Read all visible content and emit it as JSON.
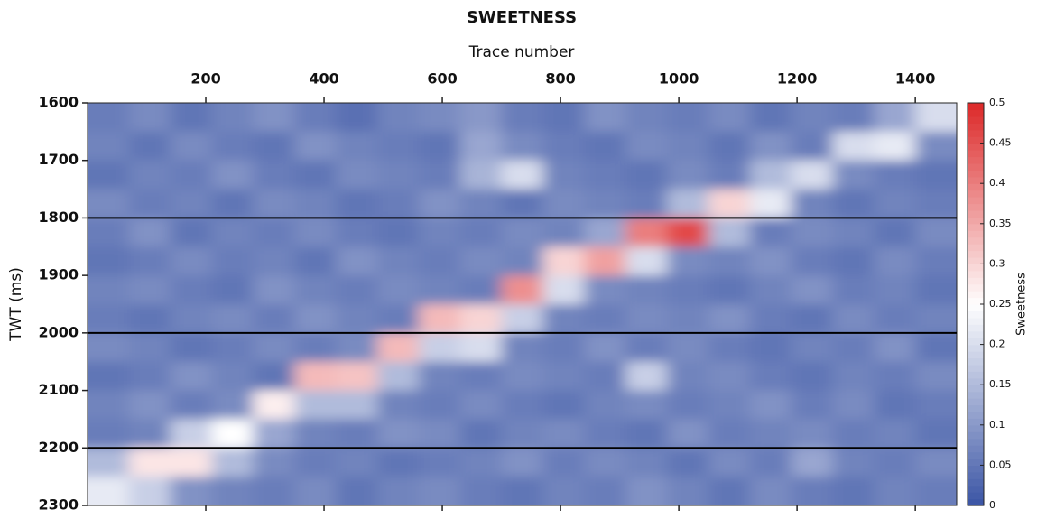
{
  "chart_data": {
    "type": "heatmap",
    "title": "SWEETNESS",
    "xlabel": "Trace number",
    "ylabel": "TWT (ms)",
    "colorbar_label": "Sweetness",
    "xlim": [
      0,
      1470
    ],
    "ylim": [
      1600,
      2300
    ],
    "xticks": [
      200,
      400,
      600,
      800,
      1000,
      1200,
      1400
    ],
    "yticks": [
      1600,
      1700,
      1800,
      1900,
      2000,
      2100,
      2200,
      2300
    ],
    "zlim": [
      0,
      0.5
    ],
    "zticks": [
      0,
      0.05,
      0.1,
      0.15,
      0.2,
      0.25,
      0.3,
      0.35,
      0.4,
      0.45,
      0.5
    ],
    "colormap": [
      "#3a54a4",
      "#ffffff",
      "#dc2828"
    ],
    "hlines": [
      1800,
      2000,
      2200
    ],
    "z": [
      [
        0.06,
        0.08,
        0.05,
        0.07,
        0.09,
        0.06,
        0.04,
        0.07,
        0.08,
        0.1,
        0.06,
        0.05,
        0.09,
        0.07,
        0.06,
        0.08,
        0.05,
        0.07,
        0.06,
        0.12,
        0.2
      ],
      [
        0.07,
        0.05,
        0.08,
        0.06,
        0.05,
        0.09,
        0.07,
        0.06,
        0.05,
        0.12,
        0.08,
        0.06,
        0.05,
        0.08,
        0.07,
        0.05,
        0.09,
        0.06,
        0.2,
        0.22,
        0.08
      ],
      [
        0.05,
        0.07,
        0.06,
        0.09,
        0.06,
        0.05,
        0.08,
        0.07,
        0.06,
        0.14,
        0.2,
        0.07,
        0.06,
        0.05,
        0.08,
        0.06,
        0.15,
        0.2,
        0.08,
        0.06,
        0.05
      ],
      [
        0.08,
        0.06,
        0.07,
        0.05,
        0.08,
        0.07,
        0.05,
        0.06,
        0.09,
        0.07,
        0.05,
        0.08,
        0.07,
        0.06,
        0.15,
        0.3,
        0.22,
        0.07,
        0.05,
        0.07,
        0.06
      ],
      [
        0.06,
        0.09,
        0.05,
        0.07,
        0.06,
        0.08,
        0.06,
        0.05,
        0.07,
        0.06,
        0.08,
        0.07,
        0.12,
        0.4,
        0.46,
        0.15,
        0.06,
        0.08,
        0.07,
        0.05,
        0.08
      ],
      [
        0.05,
        0.06,
        0.08,
        0.06,
        0.07,
        0.05,
        0.09,
        0.07,
        0.06,
        0.08,
        0.07,
        0.3,
        0.36,
        0.2,
        0.08,
        0.07,
        0.09,
        0.06,
        0.05,
        0.08,
        0.06
      ],
      [
        0.07,
        0.08,
        0.06,
        0.05,
        0.09,
        0.07,
        0.06,
        0.08,
        0.07,
        0.06,
        0.38,
        0.2,
        0.08,
        0.07,
        0.06,
        0.05,
        0.07,
        0.09,
        0.06,
        0.07,
        0.05
      ],
      [
        0.06,
        0.05,
        0.07,
        0.08,
        0.06,
        0.09,
        0.07,
        0.06,
        0.33,
        0.3,
        0.18,
        0.07,
        0.06,
        0.08,
        0.07,
        0.09,
        0.06,
        0.05,
        0.08,
        0.06,
        0.07
      ],
      [
        0.08,
        0.07,
        0.05,
        0.06,
        0.08,
        0.06,
        0.08,
        0.33,
        0.18,
        0.2,
        0.07,
        0.06,
        0.09,
        0.06,
        0.08,
        0.06,
        0.05,
        0.07,
        0.06,
        0.09,
        0.05
      ],
      [
        0.05,
        0.06,
        0.09,
        0.07,
        0.05,
        0.33,
        0.32,
        0.15,
        0.07,
        0.06,
        0.08,
        0.07,
        0.06,
        0.18,
        0.07,
        0.08,
        0.06,
        0.05,
        0.07,
        0.06,
        0.08
      ],
      [
        0.07,
        0.09,
        0.06,
        0.08,
        0.27,
        0.15,
        0.15,
        0.07,
        0.06,
        0.08,
        0.06,
        0.05,
        0.07,
        0.08,
        0.06,
        0.07,
        0.09,
        0.06,
        0.08,
        0.05,
        0.06
      ],
      [
        0.06,
        0.07,
        0.18,
        0.25,
        0.12,
        0.07,
        0.06,
        0.09,
        0.08,
        0.05,
        0.07,
        0.08,
        0.06,
        0.05,
        0.09,
        0.06,
        0.07,
        0.08,
        0.06,
        0.07,
        0.05
      ],
      [
        0.15,
        0.28,
        0.28,
        0.15,
        0.08,
        0.06,
        0.07,
        0.05,
        0.06,
        0.07,
        0.09,
        0.06,
        0.08,
        0.07,
        0.05,
        0.08,
        0.06,
        0.12,
        0.07,
        0.06,
        0.08
      ],
      [
        0.22,
        0.18,
        0.09,
        0.07,
        0.06,
        0.08,
        0.05,
        0.07,
        0.08,
        0.06,
        0.05,
        0.07,
        0.06,
        0.09,
        0.07,
        0.05,
        0.08,
        0.06,
        0.05,
        0.07,
        0.06
      ]
    ]
  }
}
